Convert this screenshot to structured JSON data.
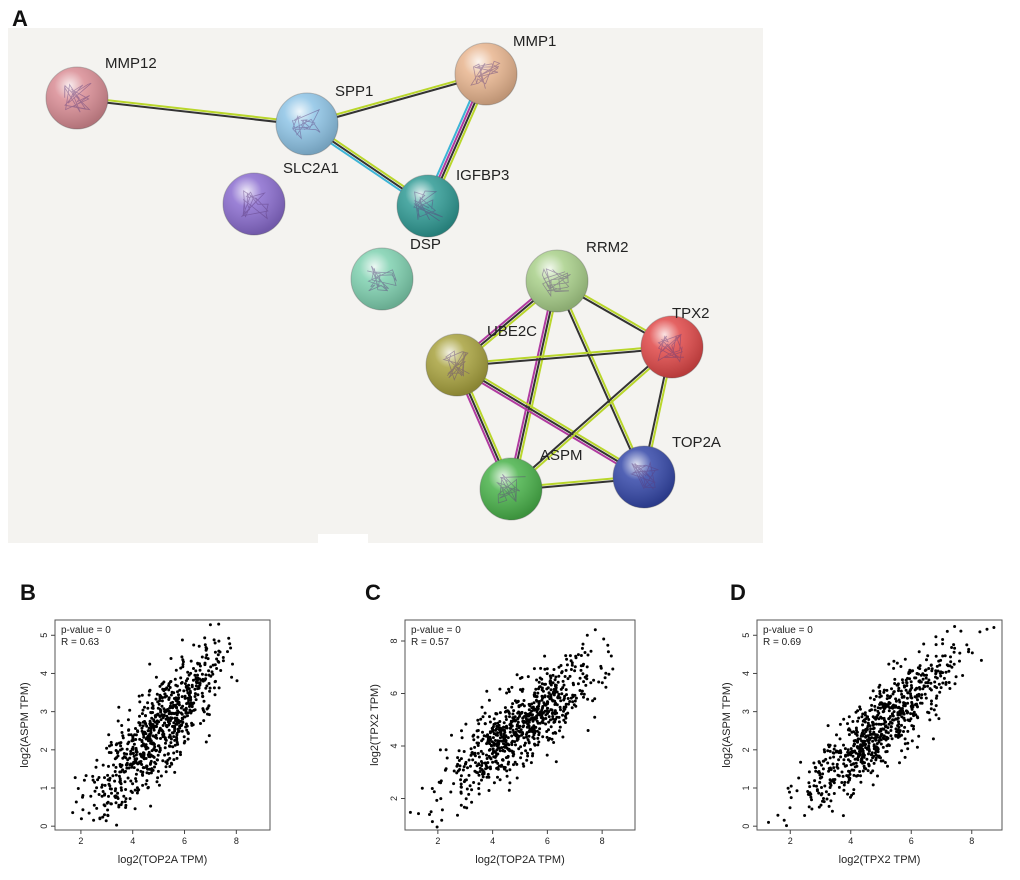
{
  "figure": {
    "panel_labels": [
      "A",
      "B",
      "C",
      "D"
    ]
  },
  "network": {
    "nodes": [
      {
        "id": "MMP12",
        "label": "MMP12",
        "color": "#d98c94",
        "show_label": true
      },
      {
        "id": "SPP1",
        "label": "SPP1",
        "color": "#8ec4e6",
        "show_label": true
      },
      {
        "id": "MMP1",
        "label": "MMP1",
        "color": "#e8b58f",
        "show_label": true
      },
      {
        "id": "SLC2A1",
        "label": "SLC2A1",
        "color": "#8a6ccf",
        "show_label": true
      },
      {
        "id": "IGFBP3",
        "label": "IGFBP3",
        "color": "#2f9a94",
        "show_label": true
      },
      {
        "id": "DSP",
        "label": "DSP",
        "color": "#7fd1b0",
        "show_label": true
      },
      {
        "id": "RRM2",
        "label": "RRM2",
        "color": "#a9d08a",
        "show_label": true
      },
      {
        "id": "TPX2",
        "label": "TPX2",
        "color": "#e04848",
        "show_label": true
      },
      {
        "id": "UBE2C",
        "label": "UBE2C",
        "color": "#a8a23e",
        "show_label": true
      },
      {
        "id": "ASPM",
        "label": "ASPM",
        "color": "#49b24a",
        "show_label": true
      },
      {
        "id": "TOP2A",
        "label": "TOP2A",
        "color": "#3447a8",
        "show_label": true
      }
    ],
    "edges": [
      {
        "source": "MMP12",
        "target": "SPP1",
        "types": [
          "text-mining",
          "co-expression"
        ]
      },
      {
        "source": "SPP1",
        "target": "MMP1",
        "types": [
          "text-mining",
          "co-expression"
        ]
      },
      {
        "source": "SPP1",
        "target": "IGFBP3",
        "types": [
          "text-mining",
          "co-expression",
          "database"
        ]
      },
      {
        "source": "MMP1",
        "target": "IGFBP3",
        "types": [
          "text-mining",
          "co-expression",
          "experimental",
          "database"
        ]
      },
      {
        "source": "RRM2",
        "target": "TPX2",
        "types": [
          "text-mining",
          "co-expression"
        ]
      },
      {
        "source": "RRM2",
        "target": "UBE2C",
        "types": [
          "text-mining",
          "co-expression",
          "experimental"
        ]
      },
      {
        "source": "RRM2",
        "target": "ASPM",
        "types": [
          "text-mining",
          "co-expression",
          "experimental"
        ]
      },
      {
        "source": "RRM2",
        "target": "TOP2A",
        "types": [
          "text-mining",
          "co-expression"
        ]
      },
      {
        "source": "UBE2C",
        "target": "TPX2",
        "types": [
          "text-mining",
          "co-expression"
        ]
      },
      {
        "source": "UBE2C",
        "target": "ASPM",
        "types": [
          "text-mining",
          "co-expression",
          "experimental"
        ]
      },
      {
        "source": "UBE2C",
        "target": "TOP2A",
        "types": [
          "text-mining",
          "co-expression",
          "experimental"
        ]
      },
      {
        "source": "TPX2",
        "target": "ASPM",
        "types": [
          "text-mining",
          "co-expression"
        ]
      },
      {
        "source": "TPX2",
        "target": "TOP2A",
        "types": [
          "text-mining",
          "co-expression"
        ]
      },
      {
        "source": "ASPM",
        "target": "TOP2A",
        "types": [
          "text-mining",
          "co-expression"
        ]
      }
    ],
    "edge_colors": {
      "text-mining": "#b9d62b",
      "co-expression": "#333333",
      "experimental": "#b03aa0",
      "database": "#3cb4d6"
    }
  },
  "chart_data": [
    {
      "type": "scatter",
      "panel": "B",
      "xlabel": "log2(TOP2A TPM)",
      "ylabel": "log2(ASPM TPM)",
      "x_ticks": [
        2,
        4,
        6,
        8
      ],
      "y_ticks": [
        0,
        1,
        2,
        3,
        4,
        5
      ],
      "xlim": [
        1.0,
        9.3
      ],
      "ylim": [
        -0.1,
        5.4
      ],
      "annotations": [
        "p-value = 0",
        "R = 0.63"
      ],
      "n_points": 800,
      "trend": {
        "slope": 0.72,
        "intercept": -1.1,
        "x_mean": 5.0,
        "x_sd": 1.3,
        "noise_sd": 0.62
      }
    },
    {
      "type": "scatter",
      "panel": "C",
      "xlabel": "log2(TOP2A TPM)",
      "ylabel": "log2(TPX2 TPM)",
      "x_ticks": [
        2,
        4,
        6,
        8
      ],
      "y_ticks": [
        2,
        4,
        6,
        8
      ],
      "xlim": [
        0.8,
        9.2
      ],
      "ylim": [
        0.8,
        8.8
      ],
      "annotations": [
        "p-value = 0",
        "R = 0.57"
      ],
      "n_points": 800,
      "trend": {
        "slope": 0.78,
        "intercept": 0.9,
        "x_mean": 5.0,
        "x_sd": 1.3,
        "noise_sd": 0.75
      }
    },
    {
      "type": "scatter",
      "panel": "D",
      "xlabel": "log2(TPX2 TPM)",
      "ylabel": "log2(ASPM TPM)",
      "x_ticks": [
        2,
        4,
        6,
        8
      ],
      "y_ticks": [
        0,
        1,
        2,
        3,
        4,
        5
      ],
      "xlim": [
        0.9,
        9.0
      ],
      "ylim": [
        -0.1,
        5.4
      ],
      "annotations": [
        "p-value = 0",
        "R = 0.69"
      ],
      "n_points": 800,
      "trend": {
        "slope": 0.7,
        "intercept": -0.9,
        "x_mean": 5.0,
        "x_sd": 1.3,
        "noise_sd": 0.5
      }
    }
  ]
}
